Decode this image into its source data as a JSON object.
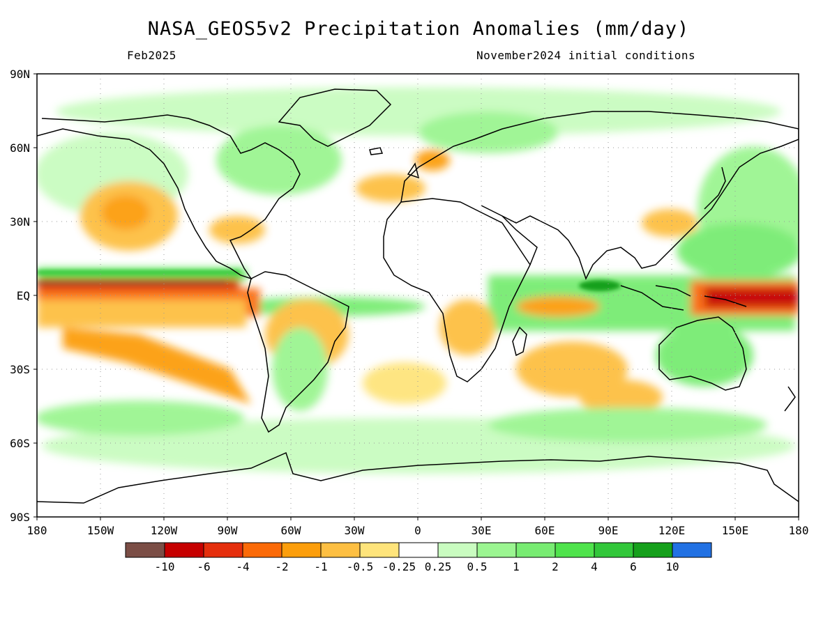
{
  "header": {
    "title": "NASA_GEOS5v2 Precipitation Anomalies (mm/day)",
    "valid_month": "Feb2025",
    "init_conditions": "November2024 initial conditions"
  },
  "axes": {
    "lat_labels": [
      "90N",
      "60N",
      "30N",
      "EQ",
      "30S",
      "60S",
      "90S"
    ],
    "lat_values": [
      90,
      60,
      30,
      0,
      -30,
      -60,
      -90
    ],
    "lon_labels": [
      "180",
      "150W",
      "120W",
      "90W",
      "60W",
      "30W",
      "0",
      "30E",
      "60E",
      "90E",
      "120E",
      "150E",
      "180"
    ],
    "lon_values": [
      -180,
      -150,
      -120,
      -90,
      -60,
      -30,
      0,
      30,
      60,
      90,
      120,
      150,
      180
    ]
  },
  "colorbar": {
    "labels": [
      "-10",
      "-6",
      "-4",
      "-2",
      "-1",
      "-0.5",
      "-0.25",
      "0.25",
      "0.5",
      "1",
      "2",
      "4",
      "6",
      "10"
    ],
    "colors": [
      "#7b4e46",
      "#c60000",
      "#e52f0d",
      "#fb6a08",
      "#fc9e0c",
      "#fdbf42",
      "#fee47b",
      "#ffffff",
      "#c9fcc0",
      "#9bf591",
      "#78ec72",
      "#4fe34c",
      "#32c73a",
      "#16a01c",
      "#2271e3"
    ]
  },
  "map_colors": {
    "ocean_background": "#ffffff",
    "coastline": "#000000",
    "grid": "#999999"
  }
}
